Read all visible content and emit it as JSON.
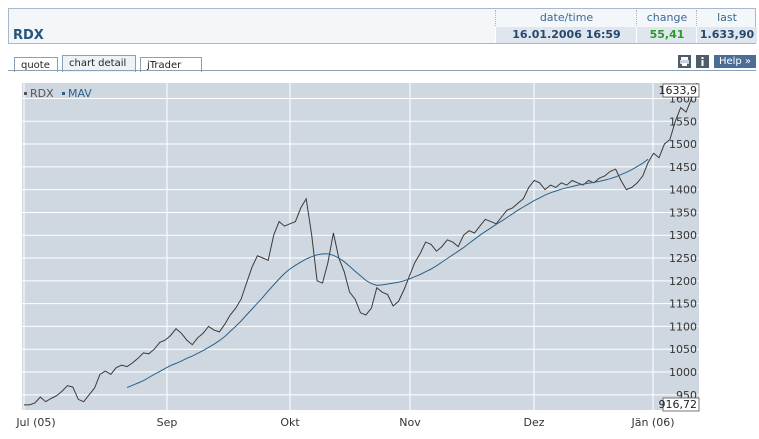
{
  "quote": {
    "symbol": "RDX",
    "headers": {
      "datetime": "date/time",
      "change": "change",
      "last": "last"
    },
    "values": {
      "datetime": "16.01.2006 16:59",
      "change": "55,41",
      "last": "1.633,90"
    }
  },
  "tabs": [
    {
      "label": "quote",
      "active": false
    },
    {
      "label": "chart detail",
      "active": true
    },
    {
      "label": "jTrader",
      "active": false
    }
  ],
  "toolbar": {
    "print_icon": "printer-icon",
    "info_icon": "info-icon",
    "help_label": "Help »"
  },
  "colors": {
    "rdx_line": "#3a3a3a",
    "mav_line": "#2c5f8a",
    "plot_bg": "#cfd8e0",
    "grid": "#ffffff",
    "change_positive": "#2d9a2d"
  },
  "chart_data": {
    "type": "line",
    "legend": [
      {
        "name": "RDX"
      },
      {
        "name": "MAV"
      }
    ],
    "legend_position": "top-left",
    "x_ticks": [
      "Jul (05)",
      "Sep",
      "Okt",
      "Nov",
      "Dez",
      "Jän (06)"
    ],
    "y_ticks": [
      950,
      1000,
      1050,
      1100,
      1150,
      1200,
      1250,
      1300,
      1350,
      1400,
      1450,
      1500,
      1550,
      1600
    ],
    "ylim": [
      916.72,
      1633.9
    ],
    "max_label": "1633,9",
    "min_label": "916,72",
    "grid": true,
    "series": [
      {
        "name": "RDX",
        "values": [
          928,
          928,
          932,
          945,
          935,
          942,
          948,
          958,
          970,
          967,
          940,
          935,
          950,
          965,
          995,
          1002,
          995,
          1010,
          1015,
          1012,
          1020,
          1030,
          1042,
          1040,
          1050,
          1065,
          1070,
          1080,
          1095,
          1085,
          1070,
          1060,
          1075,
          1085,
          1100,
          1092,
          1088,
          1105,
          1125,
          1140,
          1160,
          1195,
          1230,
          1255,
          1250,
          1245,
          1300,
          1330,
          1320,
          1325,
          1330,
          1360,
          1380,
          1300,
          1200,
          1195,
          1240,
          1305,
          1250,
          1220,
          1175,
          1160,
          1130,
          1125,
          1140,
          1185,
          1175,
          1170,
          1145,
          1155,
          1180,
          1210,
          1240,
          1260,
          1285,
          1280,
          1265,
          1275,
          1290,
          1285,
          1275,
          1300,
          1310,
          1305,
          1320,
          1335,
          1330,
          1325,
          1340,
          1355,
          1360,
          1370,
          1380,
          1405,
          1420,
          1415,
          1400,
          1410,
          1405,
          1415,
          1410,
          1420,
          1415,
          1410,
          1420,
          1415,
          1425,
          1430,
          1440,
          1445,
          1420,
          1400,
          1405,
          1415,
          1430,
          1460,
          1480,
          1470,
          1500,
          1510,
          1550,
          1580,
          1570,
          1600,
          1633.9
        ]
      },
      {
        "name": "MAV",
        "start_index": 19,
        "values": [
          966,
          971,
          976,
          981,
          988,
          995,
          1001,
          1008,
          1014,
          1019,
          1024,
          1030,
          1035,
          1041,
          1047,
          1054,
          1061,
          1069,
          1078,
          1089,
          1100,
          1112,
          1125,
          1138,
          1151,
          1164,
          1178,
          1191,
          1204,
          1216,
          1226,
          1234,
          1241,
          1248,
          1253,
          1257,
          1259,
          1259,
          1256,
          1250,
          1242,
          1232,
          1221,
          1211,
          1201,
          1194,
          1190,
          1191,
          1193,
          1195,
          1197,
          1200,
          1204,
          1209,
          1214,
          1220,
          1226,
          1233,
          1241,
          1249,
          1257,
          1265,
          1273,
          1282,
          1291,
          1300,
          1308,
          1316,
          1324,
          1331,
          1339,
          1347,
          1355,
          1362,
          1369,
          1376,
          1382,
          1388,
          1393,
          1397,
          1401,
          1404,
          1407,
          1410,
          1412,
          1414,
          1416,
          1418,
          1421,
          1424,
          1428,
          1433,
          1438,
          1444,
          1451,
          1458,
          1467
        ]
      }
    ]
  }
}
